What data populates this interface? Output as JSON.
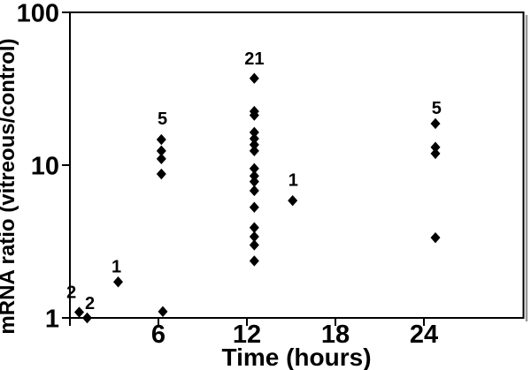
{
  "figure": {
    "background": "#ffffff",
    "frame_color": "#000000",
    "marker_color": "#000000",
    "text_color": "#000000",
    "shadow_color": "#9a9a9a"
  },
  "chart_data": {
    "type": "scatter",
    "title": "",
    "xlabel": "Time (hours)",
    "ylabel": "mRNA ratio (vitreous/control)",
    "x_scale": "linear",
    "y_scale": "log",
    "xlim": [
      0,
      30.75
    ],
    "ylim": [
      1,
      100
    ],
    "grid": false,
    "legend": "none",
    "marker": "diamond",
    "x_ticks": [
      {
        "t": 0,
        "label": ""
      },
      {
        "t": 6,
        "label": "6"
      },
      {
        "t": 12,
        "label": "12"
      },
      {
        "t": 18,
        "label": "18"
      },
      {
        "t": 24,
        "label": "24"
      }
    ],
    "y_ticks": [
      {
        "v": 1,
        "label": "1"
      },
      {
        "v": 10,
        "label": "10"
      },
      {
        "v": 100,
        "label": "100"
      }
    ],
    "groups": [
      {
        "count_label": "2",
        "label_at": {
          "t": 0.1,
          "v": 1.48
        },
        "points": [
          {
            "t": 0.63,
            "v": 1.09
          }
        ]
      },
      {
        "count_label": "2",
        "label_at": {
          "t": 1.35,
          "v": 1.25
        },
        "points": [
          {
            "t": 1.17,
            "v": 1.0
          }
        ]
      },
      {
        "count_label": "1",
        "label_at": {
          "t": 3.15,
          "v": 2.18
        },
        "points": [
          {
            "t": 3.27,
            "v": 1.72
          }
        ]
      },
      {
        "count_label": "5",
        "label_at": {
          "t": 6.27,
          "v": 20.3
        },
        "points": [
          {
            "t": 6.2,
            "v": 14.7
          },
          {
            "t": 6.2,
            "v": 12.4
          },
          {
            "t": 6.2,
            "v": 11.0
          },
          {
            "t": 6.2,
            "v": 8.75
          },
          {
            "t": 6.3,
            "v": 1.1
          }
        ]
      },
      {
        "count_label": "21",
        "label_at": {
          "t": 12.5,
          "v": 50
        },
        "points": [
          {
            "t": 12.5,
            "v": 37.0
          },
          {
            "t": 12.5,
            "v": 22.5
          },
          {
            "t": 12.5,
            "v": 21.2
          },
          {
            "t": 12.5,
            "v": 16.4
          },
          {
            "t": 12.5,
            "v": 14.9
          },
          {
            "t": 12.5,
            "v": 13.6
          },
          {
            "t": 12.5,
            "v": 12.4
          },
          {
            "t": 12.5,
            "v": 9.5
          },
          {
            "t": 12.5,
            "v": 8.5
          },
          {
            "t": 12.5,
            "v": 7.8
          },
          {
            "t": 12.5,
            "v": 6.8
          },
          {
            "t": 12.5,
            "v": 5.3
          },
          {
            "t": 12.5,
            "v": 3.9
          },
          {
            "t": 12.5,
            "v": 3.4
          },
          {
            "t": 12.5,
            "v": 3.0
          },
          {
            "t": 12.5,
            "v": 2.36
          }
        ]
      },
      {
        "count_label": "1",
        "label_at": {
          "t": 15.14,
          "v": 8.05
        },
        "points": [
          {
            "t": 15.1,
            "v": 5.86
          }
        ]
      },
      {
        "count_label": "5",
        "label_at": {
          "t": 24.86,
          "v": 23.8
        },
        "points": [
          {
            "t": 24.78,
            "v": 18.7
          },
          {
            "t": 24.78,
            "v": 13.1
          },
          {
            "t": 24.78,
            "v": 11.9
          },
          {
            "t": 24.78,
            "v": 3.35
          }
        ]
      }
    ]
  }
}
